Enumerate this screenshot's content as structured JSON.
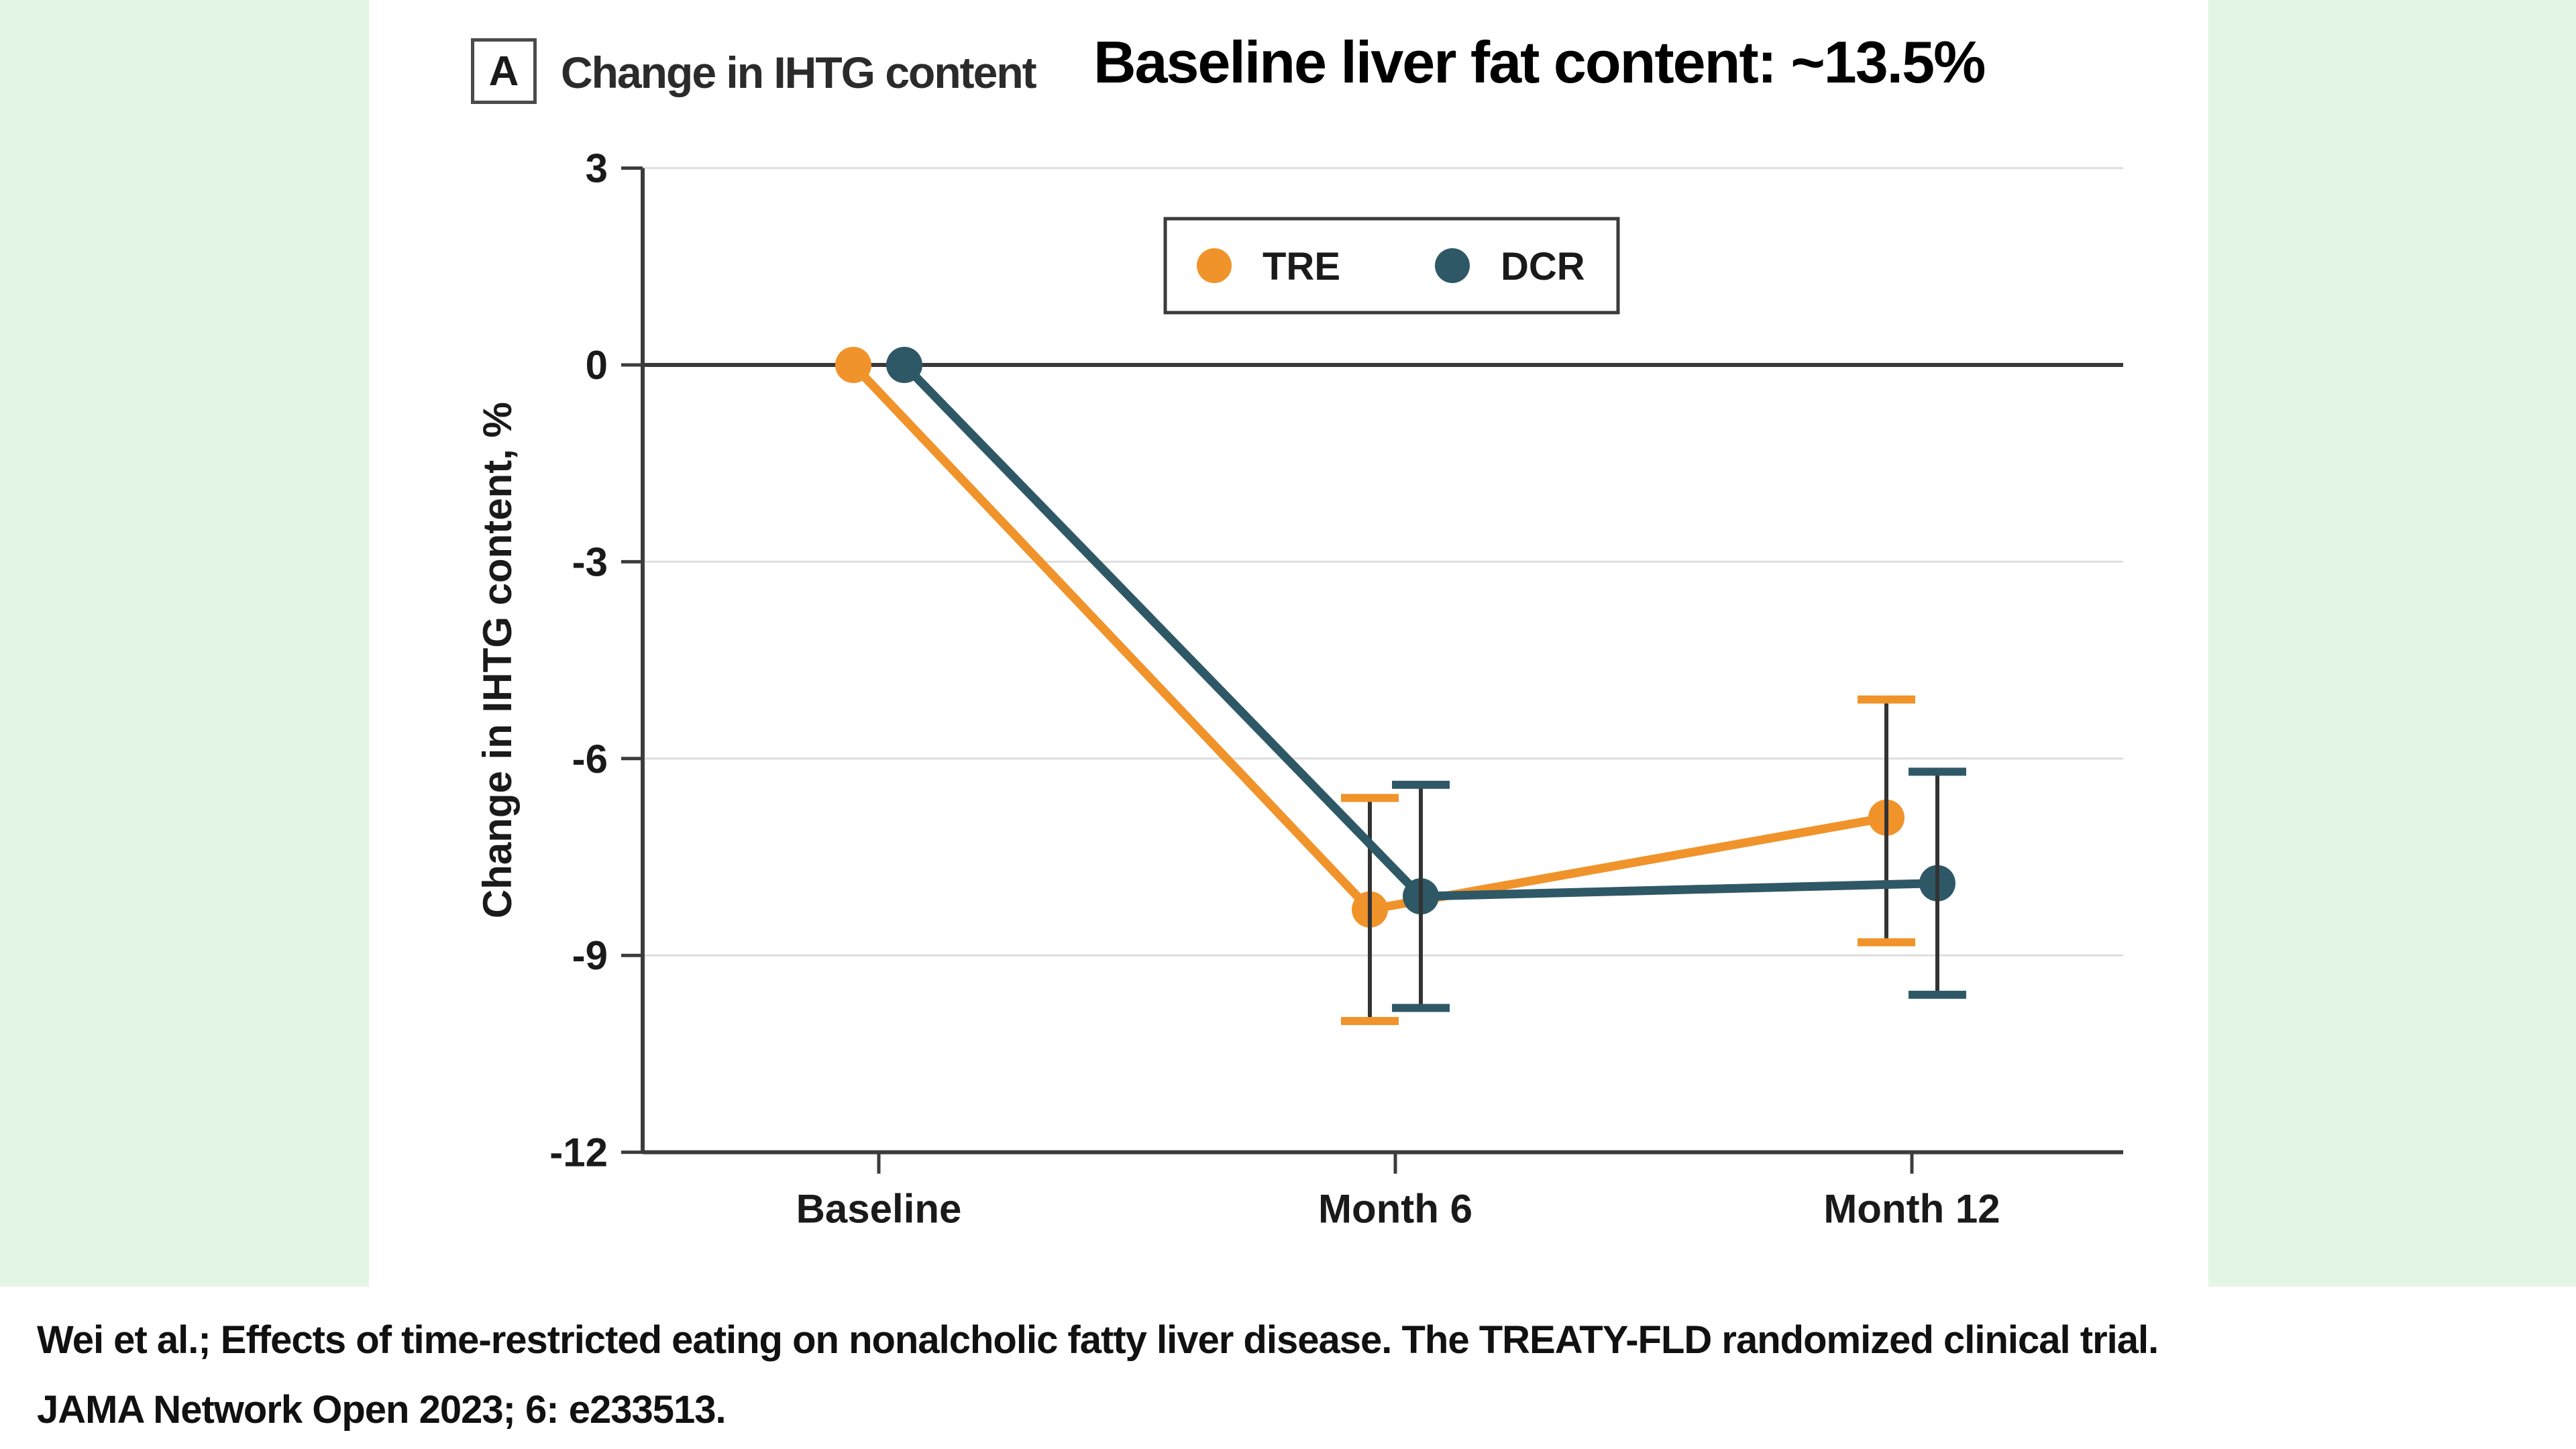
{
  "panel": {
    "letter": "A",
    "title": "Change in IHTG content"
  },
  "main_title": "Baseline liver fat content: ~13.5%",
  "legend": [
    {
      "label": "TRE",
      "color": "#F0932A"
    },
    {
      "label": "DCR",
      "color": "#2F5866"
    }
  ],
  "citation": {
    "line1": "Wei et al.; Effects of time-restricted eating on nonalcholic fatty liver disease. The TREATY-FLD randomized clinical trial.",
    "line2": "JAMA Network Open 2023; 6: e233513."
  },
  "colors": {
    "frame_background": "#E3F6E4",
    "panel_background": "#ffffff",
    "axis": "#3c3c3c",
    "gridline": "#dedede",
    "zero_line": "#383838",
    "error_bar_stem": "#333333",
    "tre_orange": "#F0932A",
    "dcr_teal": "#2F5866"
  },
  "chart_data": {
    "type": "line",
    "categories": [
      "Baseline",
      "Month 6",
      "Month 12"
    ],
    "ylabel": "Change in IHTG content, %",
    "ylim": [
      -12,
      3
    ],
    "yticks": [
      3,
      0,
      -3,
      -6,
      -9,
      -12
    ],
    "tick_labels": [
      "3",
      "0",
      "-3",
      "-6",
      "-9",
      "-12"
    ],
    "grid": true,
    "zero_line": 0,
    "legend_position": "top-center",
    "series": [
      {
        "name": "TRE",
        "color": "#F0932A",
        "values": [
          0,
          -8.3,
          -6.9
        ],
        "ci": [
          null,
          [
            -10.0,
            -6.6
          ],
          [
            -8.8,
            -5.1
          ]
        ]
      },
      {
        "name": "DCR",
        "color": "#2F5866",
        "values": [
          0,
          -8.1,
          -7.9
        ],
        "ci": [
          null,
          [
            -9.8,
            -6.4
          ],
          [
            -9.6,
            -6.2
          ]
        ]
      }
    ]
  }
}
